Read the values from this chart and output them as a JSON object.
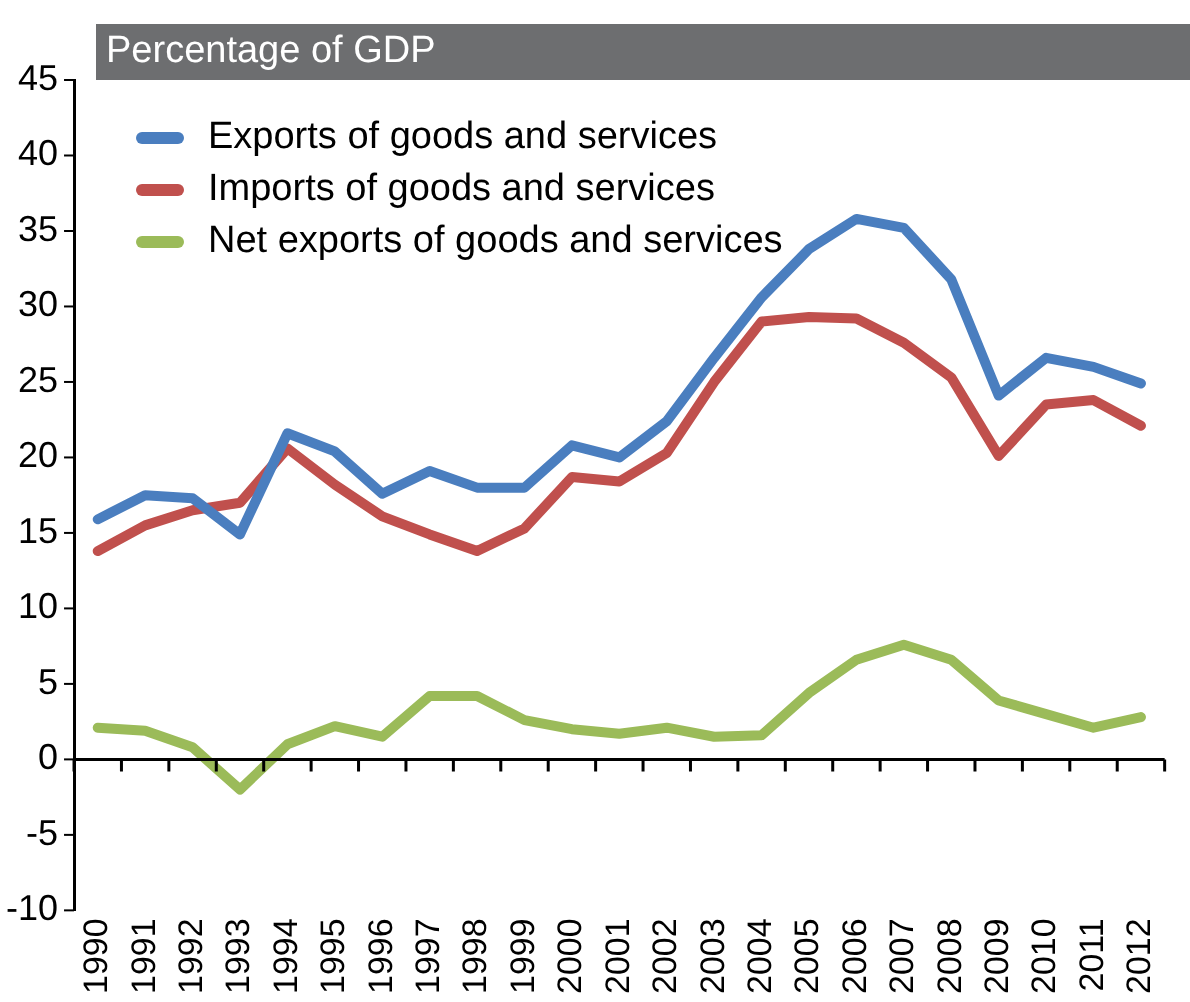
{
  "chart_data": {
    "type": "line",
    "subtitle": "Percentage of GDP",
    "categories": [
      "1990",
      "1991",
      "1992",
      "1993",
      "1994",
      "1995",
      "1996",
      "1997",
      "1998",
      "1999",
      "2000",
      "2001",
      "2002",
      "2003",
      "2004",
      "2005",
      "2006",
      "2007",
      "2008",
      "2009",
      "2010",
      "2011",
      "2012"
    ],
    "series": [
      {
        "name": "Exports of goods and services",
        "color": "#4a7ebf",
        "values": [
          15.9,
          17.5,
          17.3,
          14.9,
          21.6,
          20.4,
          17.6,
          19.1,
          18.0,
          18.0,
          20.8,
          20.0,
          22.4,
          26.6,
          30.6,
          33.8,
          35.8,
          35.2,
          31.8,
          24.1,
          26.6,
          26.0,
          24.9
        ]
      },
      {
        "name": "Imports of goods and services",
        "color": "#c0504d",
        "values": [
          13.8,
          15.5,
          16.5,
          17.0,
          20.6,
          18.2,
          16.1,
          14.9,
          13.8,
          15.3,
          18.7,
          18.4,
          20.3,
          25.0,
          29.0,
          29.3,
          29.2,
          27.6,
          25.3,
          20.1,
          23.5,
          23.8,
          22.1
        ]
      },
      {
        "name": "Net exports of goods and services",
        "color": "#9bbb59",
        "values": [
          2.1,
          1.9,
          0.8,
          -2.0,
          1.0,
          2.2,
          1.5,
          4.2,
          4.2,
          2.6,
          2.0,
          1.7,
          2.1,
          1.5,
          1.6,
          4.4,
          6.6,
          7.6,
          6.6,
          3.9,
          3.0,
          2.1,
          2.8
        ]
      }
    ],
    "ylim": [
      -10,
      45
    ],
    "yticks": [
      -10,
      -5,
      0,
      5,
      10,
      15,
      20,
      25,
      30,
      35,
      40,
      45
    ],
    "ref_lines": [
      {
        "axis": "y",
        "value": 0,
        "color": "#000000"
      }
    ],
    "grid": false,
    "legend": "top left",
    "marker": "none",
    "line_style": "solid"
  }
}
